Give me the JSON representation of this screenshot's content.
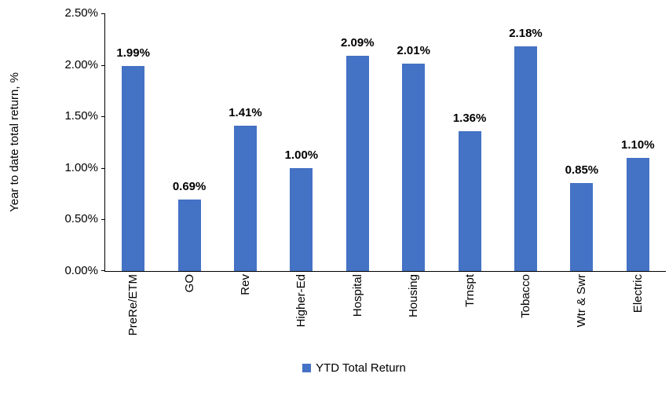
{
  "chart_data": {
    "type": "bar",
    "categories": [
      "PreRe/ETM",
      "GO",
      "Rev",
      "Higher-Ed",
      "Hospital",
      "Housing",
      "Trnspt",
      "Tobacco",
      "Wtr & Swr",
      "Electric"
    ],
    "values": [
      1.99,
      0.69,
      1.41,
      1.0,
      2.09,
      2.01,
      1.36,
      2.18,
      0.85,
      1.1
    ],
    "data_labels": [
      "1.99%",
      "0.69%",
      "1.41%",
      "1.00%",
      "2.09%",
      "2.01%",
      "1.36%",
      "2.18%",
      "0.85%",
      "1.10%"
    ],
    "title": "",
    "xlabel": "",
    "ylabel": "Year to date total return, %",
    "ylim": [
      0,
      2.5
    ],
    "ytick_labels": [
      "0.00%",
      "0.50%",
      "1.00%",
      "1.50%",
      "2.00%",
      "2.50%"
    ],
    "grid": false,
    "legend": [
      "YTD Total Return"
    ],
    "legend_position": "bottom",
    "bar_color": "#4472C4",
    "axis_color": "#000000",
    "label_color": "#000000"
  }
}
